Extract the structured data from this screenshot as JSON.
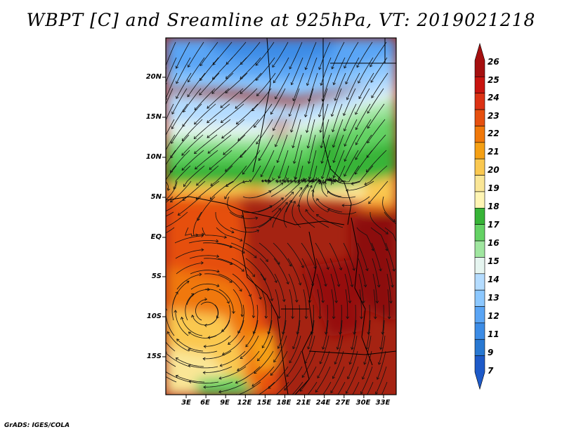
{
  "title": "WBPT [C] and Sreamline at 925hPa, VT: 2019021218",
  "map": {
    "lat_ticks": [
      "20N",
      "15N",
      "10N",
      "5N",
      "EQ",
      "5S",
      "10S",
      "15S"
    ],
    "lon_ticks": [
      "3E",
      "6E",
      "9E",
      "12E",
      "15E",
      "18E",
      "21E",
      "24E",
      "27E",
      "30E",
      "33E"
    ],
    "field": "wet-bulb potential temperature",
    "overlay": "streamlines"
  },
  "colorbar": {
    "labels": [
      "26",
      "25",
      "24",
      "23",
      "22",
      "21",
      "20",
      "19",
      "18",
      "17",
      "16",
      "15",
      "14",
      "13",
      "12",
      "11",
      "9",
      "7"
    ],
    "colors": [
      "#a50f0f",
      "#c8140f",
      "#dc3214",
      "#e6500f",
      "#f0780a",
      "#f5a014",
      "#fac850",
      "#fae696",
      "#fff5b4",
      "#37b437",
      "#64d264",
      "#a0e6a0",
      "#e6f5f0",
      "#b4dcff",
      "#8cc8ff",
      "#5aa5f5",
      "#3c8ce6",
      "#2878d2",
      "#1e5ac8"
    ]
  },
  "footer": "GrADS: IGES/COLA"
}
